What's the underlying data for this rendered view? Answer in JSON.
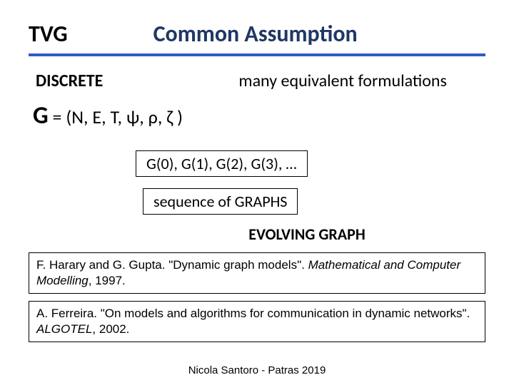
{
  "header": {
    "tvg": "TVG",
    "title": "Common Assumption",
    "title_color": "#1f3864",
    "rule_color": "#2e5cc5"
  },
  "labels": {
    "discrete": "DISCRETE",
    "many_equiv": "many equivalent formulations"
  },
  "g_def": {
    "big_g": "G",
    "rest": " = (N, E, T, ψ, ρ, ζ )"
  },
  "boxes": {
    "sequence_list": "G(0),  G(1),  G(2),  G(3), …",
    "sequence_label": "sequence of  GRAPHS"
  },
  "evolving": "EVOLVING GRAPH",
  "refs": [
    {
      "pre": "F. Harary and G. Gupta. \"Dynamic graph models\". ",
      "ital": "Mathematical and Computer Modelling",
      "post": ", 1997."
    },
    {
      "pre": "A. Ferreira.  \"On models and algorithms for communication in dynamic networks\". ",
      "ital": "ALGOTEL",
      "post": ", 2002."
    }
  ],
  "footer": "Nicola Santoro - Patras 2019",
  "typography": {
    "title_fontsize": 32,
    "label_fontsize": 24,
    "gdef_fontsize": 26,
    "big_g_fontsize": 34,
    "box_fontsize": 22,
    "ref_fontsize": 17,
    "footer_fontsize": 15
  },
  "colors": {
    "background": "#ffffff",
    "text": "#000000",
    "title": "#1f3864",
    "rule": "#2e5cc5",
    "box_border": "#000000"
  }
}
